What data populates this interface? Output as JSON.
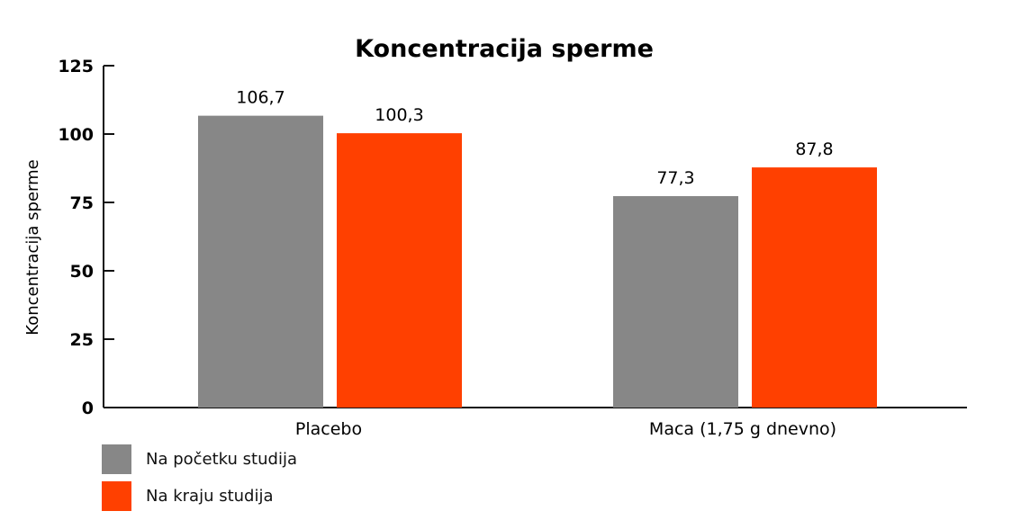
{
  "chart_data": {
    "type": "bar",
    "title": "Koncentracija sperme",
    "ylabel": "Koncentracija sperme",
    "xlabel": "",
    "ylim": [
      0,
      125
    ],
    "yticks": [
      "0",
      "25",
      "50",
      "75",
      "100",
      "125"
    ],
    "categories": [
      "Placebo",
      "Maca (1,75 g dnevno)"
    ],
    "series": [
      {
        "name": "Na početku studija",
        "values": [
          106.7,
          77.3
        ],
        "labels": [
          "106,7",
          "77,3"
        ],
        "color": "#878787"
      },
      {
        "name": "Na kraju studija",
        "values": [
          100.3,
          87.8
        ],
        "labels": [
          "100,3",
          "87,8"
        ],
        "color": "#ff4000"
      }
    ],
    "legend_placement": "bottom-left",
    "grid": false
  }
}
